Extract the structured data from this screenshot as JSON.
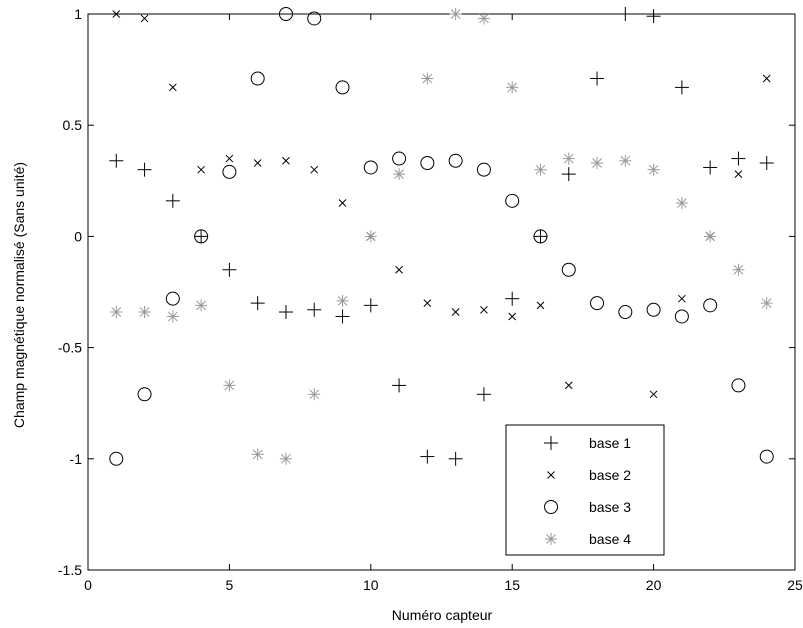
{
  "chart_data": {
    "type": "scatter",
    "xlabel": "Numéro capteur",
    "ylabel": "Champ magnétique normalisé (Sans unité)",
    "xlim": [
      0,
      25
    ],
    "ylim": [
      -1.5,
      1
    ],
    "xticks": [
      0,
      5,
      10,
      15,
      20,
      25
    ],
    "yticks": [
      -1.5,
      -1,
      -0.5,
      0,
      0.5,
      1
    ],
    "grid": false,
    "legend_position": "bottom-right",
    "series": [
      {
        "name": "base 1",
        "marker": "plus",
        "color": "#000000",
        "points": [
          [
            1,
            0.34
          ],
          [
            2,
            0.3
          ],
          [
            3,
            0.16
          ],
          [
            4,
            0.0
          ],
          [
            5,
            -0.15
          ],
          [
            6,
            -0.3
          ],
          [
            7,
            -0.34
          ],
          [
            8,
            -0.33
          ],
          [
            9,
            -0.36
          ],
          [
            10,
            -0.31
          ],
          [
            11,
            -0.67
          ],
          [
            12,
            -0.99
          ],
          [
            13,
            -1.0
          ],
          [
            14,
            -0.71
          ],
          [
            15,
            -0.28
          ],
          [
            16,
            0.0
          ],
          [
            17,
            0.28
          ],
          [
            18,
            0.71
          ],
          [
            19,
            1.0
          ],
          [
            20,
            0.99
          ],
          [
            21,
            0.67
          ],
          [
            22,
            0.31
          ],
          [
            23,
            0.35
          ],
          [
            24,
            0.33
          ]
        ]
      },
      {
        "name": "base 2",
        "marker": "x",
        "color": "#000000",
        "points": [
          [
            1,
            1.0
          ],
          [
            2,
            0.98
          ],
          [
            3,
            0.67
          ],
          [
            4,
            0.3
          ],
          [
            5,
            0.35
          ],
          [
            6,
            0.33
          ],
          [
            7,
            0.34
          ],
          [
            8,
            0.3
          ],
          [
            9,
            0.15
          ],
          [
            10,
            0.0
          ],
          [
            11,
            -0.15
          ],
          [
            12,
            -0.3
          ],
          [
            13,
            -0.34
          ],
          [
            14,
            -0.33
          ],
          [
            15,
            -0.36
          ],
          [
            16,
            -0.31
          ],
          [
            17,
            -0.67
          ],
          [
            20,
            -0.71
          ],
          [
            21,
            -0.28
          ],
          [
            22,
            0.0
          ],
          [
            23,
            0.28
          ],
          [
            24,
            0.71
          ]
        ]
      },
      {
        "name": "base 3",
        "marker": "circle",
        "color": "#000000",
        "points": [
          [
            1,
            -1.0
          ],
          [
            2,
            -0.71
          ],
          [
            3,
            -0.28
          ],
          [
            4,
            0.0
          ],
          [
            5,
            0.29
          ],
          [
            6,
            0.71
          ],
          [
            7,
            1.0
          ],
          [
            8,
            0.98
          ],
          [
            9,
            0.67
          ],
          [
            10,
            0.31
          ],
          [
            11,
            0.35
          ],
          [
            12,
            0.33
          ],
          [
            13,
            0.34
          ],
          [
            14,
            0.3
          ],
          [
            15,
            0.16
          ],
          [
            16,
            0.0
          ],
          [
            17,
            -0.15
          ],
          [
            18,
            -0.3
          ],
          [
            19,
            -0.34
          ],
          [
            20,
            -0.33
          ],
          [
            21,
            -0.36
          ],
          [
            22,
            -0.31
          ],
          [
            23,
            -0.67
          ],
          [
            24,
            -0.99
          ]
        ]
      },
      {
        "name": "base 4",
        "marker": "star",
        "color": "#999999",
        "points": [
          [
            1,
            -0.34
          ],
          [
            2,
            -0.34
          ],
          [
            3,
            -0.36
          ],
          [
            4,
            -0.31
          ],
          [
            5,
            -0.67
          ],
          [
            6,
            -0.98
          ],
          [
            7,
            -1.0
          ],
          [
            8,
            -0.71
          ],
          [
            9,
            -0.29
          ],
          [
            10,
            0.0
          ],
          [
            11,
            0.28
          ],
          [
            12,
            0.71
          ],
          [
            13,
            1.0
          ],
          [
            14,
            0.98
          ],
          [
            15,
            0.67
          ],
          [
            16,
            0.3
          ],
          [
            17,
            0.35
          ],
          [
            18,
            0.33
          ],
          [
            19,
            0.34
          ],
          [
            20,
            0.3
          ],
          [
            21,
            0.15
          ],
          [
            22,
            0.0
          ],
          [
            23,
            -0.15
          ],
          [
            24,
            -0.3
          ]
        ]
      }
    ]
  }
}
